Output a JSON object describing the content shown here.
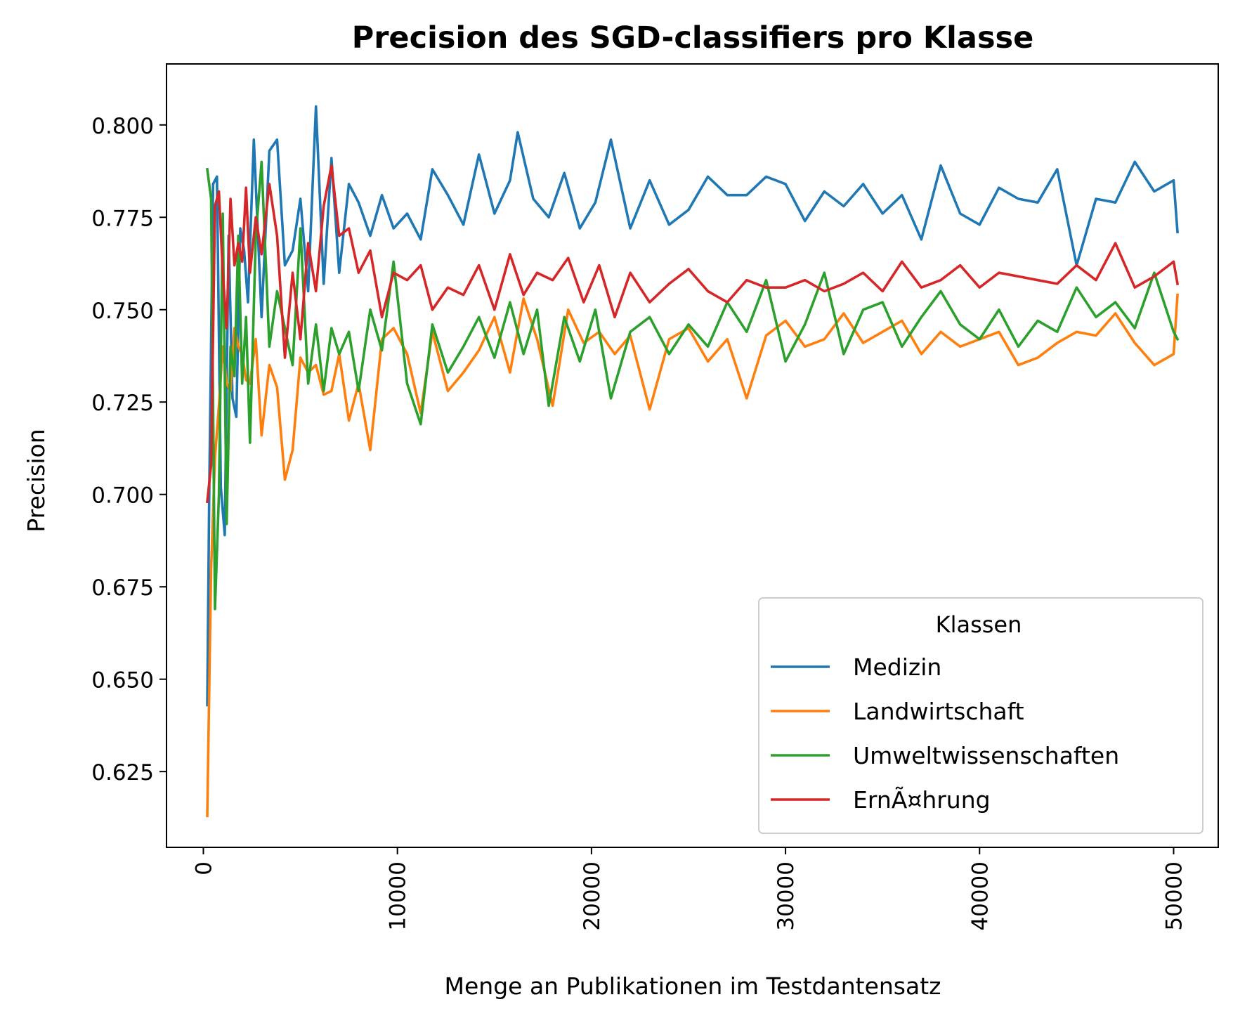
{
  "chart_data": {
    "type": "line",
    "title": "Precision des SGD-classifiers pro Klasse",
    "xlabel": "Menge an Publikationen im Testdantensatz",
    "ylabel": "Precision",
    "xlim": [
      -1900,
      52300
    ],
    "ylim": [
      0.6045,
      0.8165
    ],
    "xticks": [
      0,
      10000,
      20000,
      30000,
      40000,
      50000
    ],
    "xtick_labels": [
      "0",
      "10000",
      "20000",
      "30000",
      "40000",
      "50000"
    ],
    "yticks": [
      0.625,
      0.65,
      0.675,
      0.7,
      0.725,
      0.75,
      0.775,
      0.8
    ],
    "ytick_labels": [
      "0.625",
      "0.650",
      "0.675",
      "0.700",
      "0.725",
      "0.750",
      "0.775",
      "0.800"
    ],
    "xtick_rotation": 90,
    "grid": false,
    "legend": {
      "title": "Klassen",
      "position": "lower-right"
    },
    "series": [
      {
        "name": "Medizin",
        "color": "#1f77b4",
        "x": [
          200,
          300,
          500,
          700,
          900,
          1100,
          1300,
          1500,
          1700,
          1900,
          2100,
          2300,
          2600,
          3000,
          3400,
          3800,
          4200,
          4600,
          5000,
          5400,
          5800,
          6200,
          6600,
          7000,
          7500,
          8000,
          8600,
          9200,
          9800,
          10500,
          11200,
          11800,
          12600,
          13400,
          14200,
          15000,
          15800,
          16200,
          17000,
          17800,
          18600,
          19400,
          20200,
          21000,
          22000,
          23000,
          24000,
          25000,
          26000,
          27000,
          28000,
          29000,
          30000,
          31000,
          32000,
          33000,
          34000,
          35000,
          36000,
          37000,
          38000,
          39000,
          40000,
          41000,
          42000,
          43000,
          44000,
          45000,
          46000,
          47000,
          48000,
          49000,
          50000,
          50200
        ],
        "y": [
          0.643,
          0.7,
          0.784,
          0.786,
          0.702,
          0.689,
          0.77,
          0.726,
          0.721,
          0.772,
          0.766,
          0.752,
          0.796,
          0.748,
          0.793,
          0.796,
          0.762,
          0.766,
          0.78,
          0.755,
          0.805,
          0.757,
          0.791,
          0.76,
          0.784,
          0.779,
          0.77,
          0.781,
          0.772,
          0.776,
          0.769,
          0.788,
          0.781,
          0.773,
          0.792,
          0.776,
          0.785,
          0.798,
          0.78,
          0.775,
          0.787,
          0.772,
          0.779,
          0.796,
          0.772,
          0.785,
          0.773,
          0.777,
          0.786,
          0.781,
          0.781,
          0.786,
          0.784,
          0.774,
          0.782,
          0.778,
          0.784,
          0.776,
          0.781,
          0.769,
          0.789,
          0.776,
          0.773,
          0.783,
          0.78,
          0.779,
          0.788,
          0.762,
          0.78,
          0.779,
          0.79,
          0.782,
          0.785,
          0.771
        ]
      },
      {
        "name": "Landwirtschaft",
        "color": "#ff7f0e",
        "x": [
          200,
          400,
          600,
          800,
          1000,
          1200,
          1400,
          1600,
          1800,
          2000,
          2200,
          2400,
          2700,
          3000,
          3400,
          3800,
          4200,
          4600,
          5000,
          5400,
          5800,
          6200,
          6600,
          7000,
          7500,
          8000,
          8600,
          9200,
          9800,
          10500,
          11200,
          11800,
          12600,
          13400,
          14200,
          15000,
          15800,
          16500,
          17200,
          18000,
          18800,
          19600,
          20400,
          21200,
          22000,
          23000,
          24000,
          25000,
          26000,
          27000,
          28000,
          29000,
          30000,
          31000,
          32000,
          33000,
          34000,
          35000,
          36000,
          37000,
          38000,
          39000,
          40000,
          41000,
          42000,
          43000,
          44000,
          45000,
          46000,
          47000,
          48000,
          49000,
          50000,
          50200
        ],
        "y": [
          0.613,
          0.68,
          0.71,
          0.724,
          0.74,
          0.73,
          0.728,
          0.745,
          0.74,
          0.738,
          0.731,
          0.73,
          0.742,
          0.716,
          0.735,
          0.729,
          0.704,
          0.712,
          0.737,
          0.733,
          0.735,
          0.727,
          0.728,
          0.738,
          0.72,
          0.73,
          0.712,
          0.742,
          0.745,
          0.738,
          0.722,
          0.744,
          0.728,
          0.733,
          0.739,
          0.748,
          0.733,
          0.753,
          0.742,
          0.724,
          0.75,
          0.741,
          0.744,
          0.738,
          0.743,
          0.723,
          0.742,
          0.745,
          0.736,
          0.742,
          0.726,
          0.743,
          0.747,
          0.74,
          0.742,
          0.749,
          0.741,
          0.744,
          0.747,
          0.738,
          0.744,
          0.74,
          0.742,
          0.744,
          0.735,
          0.737,
          0.741,
          0.744,
          0.743,
          0.749,
          0.741,
          0.735,
          0.738,
          0.754
        ]
      },
      {
        "name": "Umweltwissenschaften",
        "color": "#2ca02c",
        "x": [
          200,
          400,
          600,
          800,
          1000,
          1200,
          1400,
          1600,
          1800,
          2000,
          2200,
          2400,
          2700,
          3000,
          3400,
          3800,
          4200,
          4600,
          5000,
          5400,
          5800,
          6200,
          6600,
          7000,
          7500,
          8000,
          8600,
          9200,
          9800,
          10500,
          11200,
          11800,
          12600,
          13400,
          14200,
          15000,
          15800,
          16500,
          17200,
          17800,
          18600,
          19400,
          20200,
          21000,
          22000,
          23000,
          24000,
          25000,
          26000,
          27000,
          28000,
          29000,
          30000,
          31000,
          32000,
          33000,
          34000,
          35000,
          36000,
          37000,
          38000,
          39000,
          40000,
          41000,
          42000,
          43000,
          44000,
          45000,
          46000,
          47000,
          48000,
          49000,
          50000,
          50200
        ],
        "y": [
          0.788,
          0.78,
          0.669,
          0.7,
          0.776,
          0.692,
          0.74,
          0.732,
          0.77,
          0.73,
          0.748,
          0.714,
          0.77,
          0.79,
          0.74,
          0.755,
          0.745,
          0.735,
          0.772,
          0.73,
          0.746,
          0.728,
          0.745,
          0.738,
          0.744,
          0.728,
          0.75,
          0.739,
          0.763,
          0.73,
          0.719,
          0.746,
          0.733,
          0.74,
          0.748,
          0.737,
          0.752,
          0.738,
          0.75,
          0.724,
          0.748,
          0.736,
          0.75,
          0.726,
          0.744,
          0.748,
          0.738,
          0.746,
          0.74,
          0.752,
          0.744,
          0.758,
          0.736,
          0.746,
          0.76,
          0.738,
          0.75,
          0.752,
          0.74,
          0.748,
          0.755,
          0.746,
          0.742,
          0.75,
          0.74,
          0.747,
          0.744,
          0.756,
          0.748,
          0.752,
          0.745,
          0.76,
          0.744,
          0.742
        ]
      },
      {
        "name": "ErnÃ¤hrung",
        "color": "#d62728",
        "x": [
          200,
          400,
          600,
          800,
          1000,
          1200,
          1400,
          1600,
          1800,
          2000,
          2200,
          2400,
          2700,
          3000,
          3400,
          3800,
          4200,
          4600,
          5000,
          5400,
          5800,
          6200,
          6600,
          7000,
          7500,
          8000,
          8600,
          9200,
          9800,
          10500,
          11200,
          11800,
          12600,
          13400,
          14200,
          15000,
          15800,
          16500,
          17200,
          18000,
          18800,
          19600,
          20400,
          21200,
          22000,
          23000,
          24000,
          25000,
          26000,
          27000,
          28000,
          29000,
          30000,
          31000,
          32000,
          33000,
          34000,
          35000,
          36000,
          37000,
          38000,
          39000,
          40000,
          41000,
          42000,
          43000,
          44000,
          45000,
          46000,
          47000,
          48000,
          49000,
          50000,
          50200
        ],
        "y": [
          0.698,
          0.708,
          0.778,
          0.782,
          0.76,
          0.745,
          0.78,
          0.762,
          0.768,
          0.763,
          0.783,
          0.76,
          0.775,
          0.765,
          0.784,
          0.77,
          0.737,
          0.76,
          0.742,
          0.768,
          0.755,
          0.778,
          0.789,
          0.77,
          0.772,
          0.76,
          0.766,
          0.748,
          0.76,
          0.758,
          0.762,
          0.75,
          0.756,
          0.754,
          0.762,
          0.75,
          0.765,
          0.754,
          0.76,
          0.758,
          0.764,
          0.752,
          0.762,
          0.748,
          0.76,
          0.752,
          0.757,
          0.761,
          0.755,
          0.752,
          0.758,
          0.756,
          0.756,
          0.758,
          0.755,
          0.757,
          0.76,
          0.755,
          0.763,
          0.756,
          0.758,
          0.762,
          0.756,
          0.76,
          0.759,
          0.758,
          0.757,
          0.762,
          0.758,
          0.768,
          0.756,
          0.759,
          0.763,
          0.757
        ]
      }
    ]
  }
}
